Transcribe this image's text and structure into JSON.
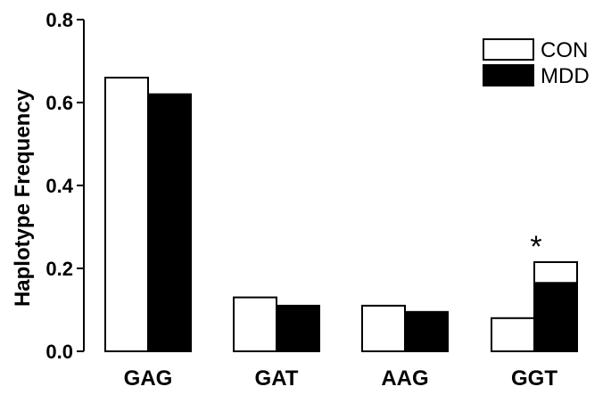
{
  "chart_data": {
    "type": "bar",
    "title": "",
    "xlabel": "",
    "ylabel": "Haplotype Frequency",
    "ylim": [
      0,
      0.8
    ],
    "yticks": [
      0.0,
      0.2,
      0.4,
      0.6,
      0.8
    ],
    "ytick_labels": [
      "0.0",
      "0.2",
      "0.4",
      "0.6",
      "0.8"
    ],
    "categories": [
      "GAG",
      "GAT",
      "AAG",
      "GGT"
    ],
    "series": [
      {
        "name": "CON",
        "values": [
          0.66,
          0.13,
          0.11,
          0.08
        ],
        "color": "#ffffff"
      },
      {
        "name": "MDD",
        "values": [
          0.62,
          0.11,
          0.095,
          0.165
        ],
        "color": "#000000"
      }
    ],
    "significance_bracket": {
      "category": "GGT",
      "level": 0.215,
      "label": "*"
    },
    "legend": {
      "placement": "top-right",
      "entries": [
        "CON",
        "MDD"
      ]
    },
    "grid": false
  }
}
